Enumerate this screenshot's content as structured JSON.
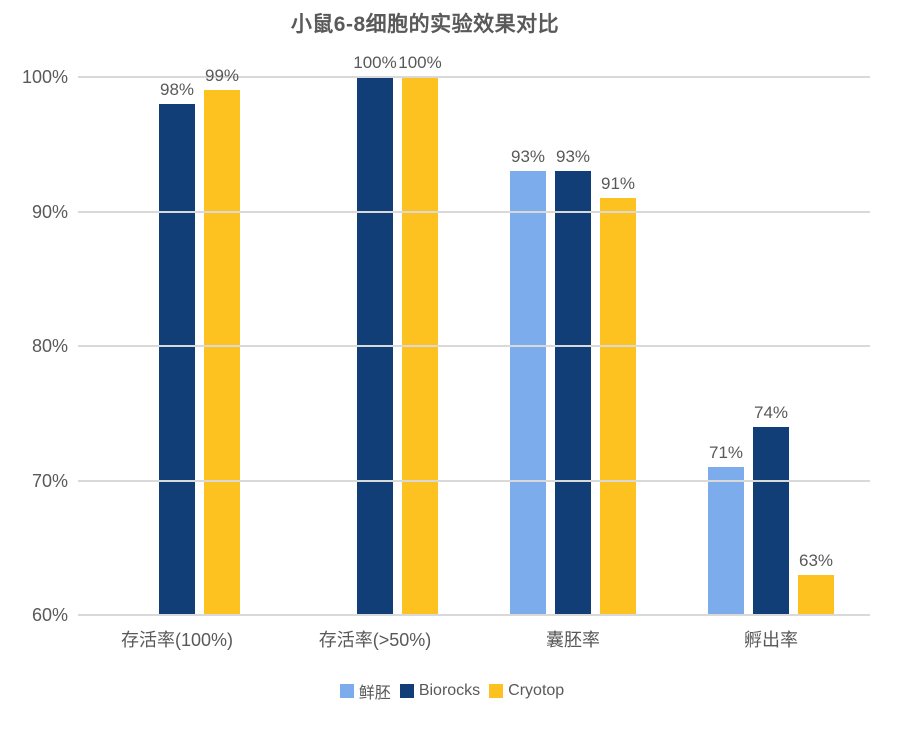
{
  "chart_data": {
    "type": "bar",
    "title": "小鼠6-8细胞的实验效果对比",
    "categories": [
      "存活率(100%)",
      "存活率(>50%)",
      "囊胚率",
      "孵出率"
    ],
    "series": [
      {
        "name": "鲜胚",
        "color": "#7CACEC",
        "values": [
          null,
          null,
          93,
          71
        ],
        "labels": [
          null,
          null,
          "93%",
          "71%"
        ]
      },
      {
        "name": "Biorocks",
        "color": "#123E78",
        "values": [
          98,
          100,
          93,
          74
        ],
        "labels": [
          "98%",
          "100%",
          "93%",
          "74%"
        ]
      },
      {
        "name": "Cryotop",
        "color": "#FDC220",
        "values": [
          99,
          100,
          91,
          63
        ],
        "labels": [
          "99%",
          "100%",
          "91%",
          "63%"
        ]
      }
    ],
    "ylim": [
      60,
      100
    ],
    "yticks": [
      100,
      90,
      80,
      70,
      60
    ],
    "ytick_labels": [
      "100%",
      "90%",
      "80%",
      "70%",
      "60%"
    ],
    "grid": true,
    "legend_position": "bottom",
    "styles": {
      "text_color": "#595959",
      "grid_color": "#D9D9D9",
      "background": "#FFFFFF"
    }
  }
}
